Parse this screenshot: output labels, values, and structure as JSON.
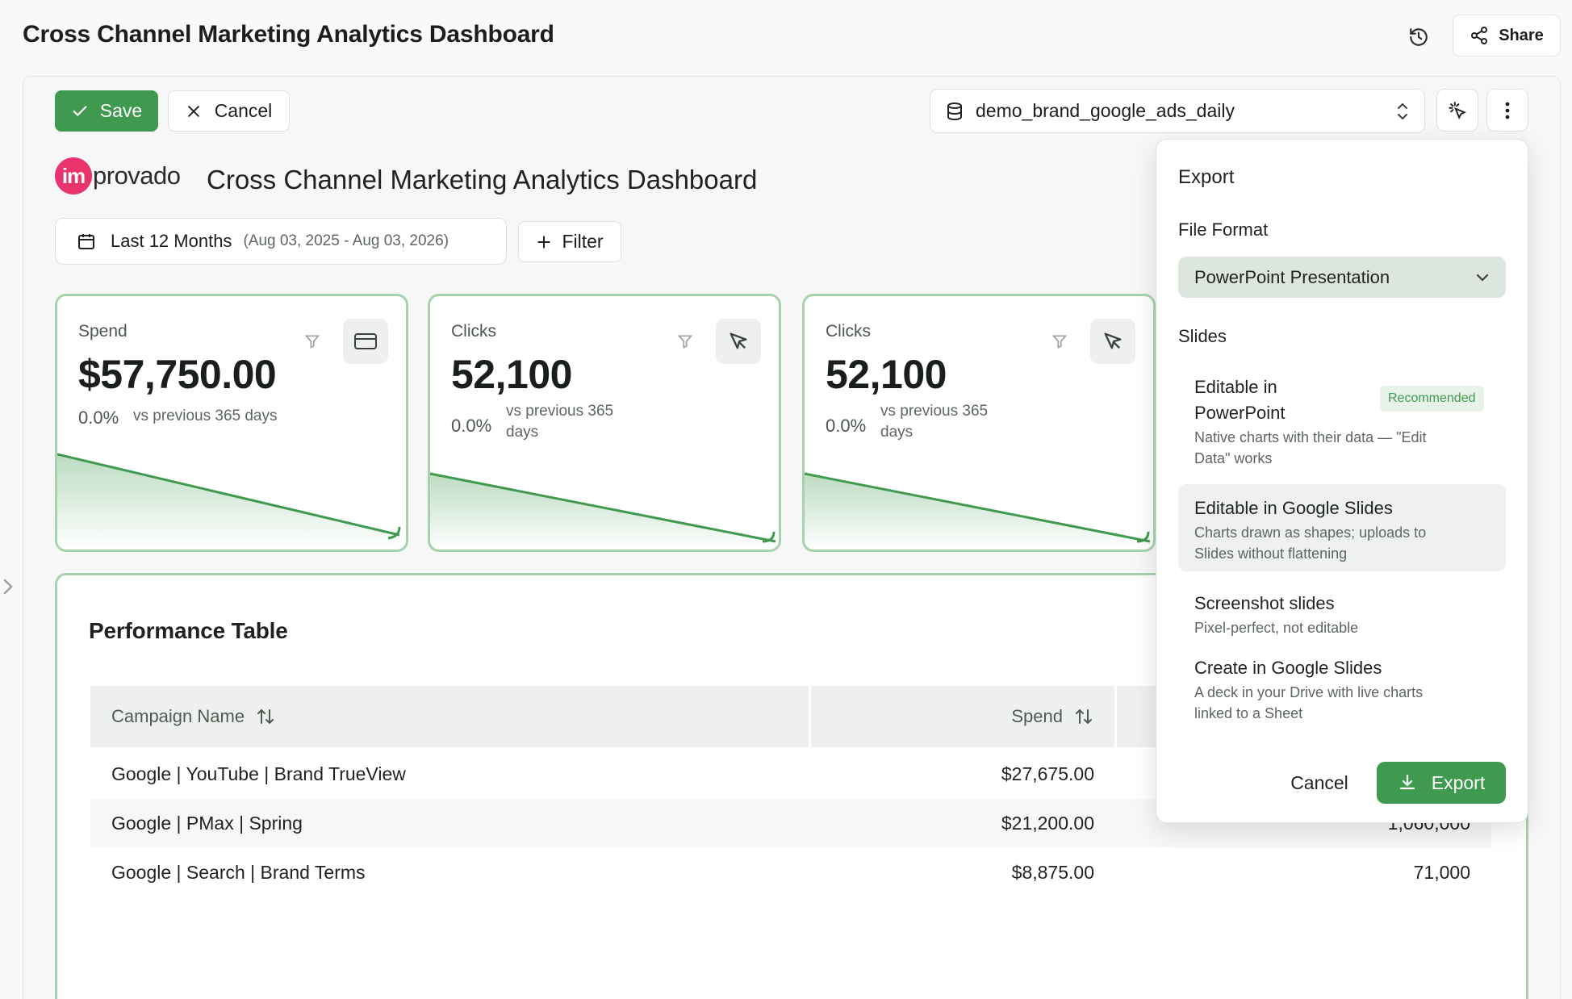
{
  "header": {
    "title": "Cross Channel Marketing Analytics Dashboard",
    "share_label": "Share"
  },
  "toolbar": {
    "save_label": "Save",
    "cancel_label": "Cancel",
    "data_source": "demo_brand_google_ads_daily"
  },
  "dashboard": {
    "logo_mark": "im",
    "logo_rest": "provado",
    "title": "Cross Channel Marketing Analytics Dashboard",
    "date_range_label": "Last 12 Months",
    "date_range_dates": "(Aug 03, 2025 - Aug 03, 2026)",
    "filter_label": "Filter"
  },
  "kpis": [
    {
      "label": "Spend",
      "value": "$57,750.00",
      "delta": "0.0%",
      "comparison": "vs previous 365 days",
      "icon": "credit-card-icon"
    },
    {
      "label": "Clicks",
      "value": "52,100",
      "delta": "0.0%",
      "comparison_line1": "vs previous 365",
      "comparison_line2": "days",
      "icon": "cursor-icon"
    },
    {
      "label": "Clicks",
      "value": "52,100",
      "delta": "0.0%",
      "comparison_line1": "vs previous 365",
      "comparison_line2": "days",
      "icon": "cursor-icon"
    }
  ],
  "table": {
    "title": "Performance Table",
    "columns": [
      "Campaign Name",
      "Spend"
    ],
    "rows": [
      {
        "campaign": "Google | YouTube | Brand TrueView",
        "spend": "$27,675.00",
        "third": ""
      },
      {
        "campaign": "Google | PMax | Spring",
        "spend": "$21,200.00",
        "third": "1,060,000"
      },
      {
        "campaign": "Google | Search | Brand Terms",
        "spend": "$8,875.00",
        "third": "71,000"
      }
    ]
  },
  "export_popover": {
    "title": "Export",
    "file_format_label": "File Format",
    "file_format_value": "PowerPoint Presentation",
    "slides_label": "Slides",
    "options": [
      {
        "title_line1": "Editable in",
        "title_line2": "PowerPoint",
        "desc_line1": "Native charts with their data — \"Edit",
        "desc_line2": "Data\" works",
        "badge": "Recommended"
      },
      {
        "title": "Editable in Google Slides",
        "desc_line1": "Charts drawn as shapes; uploads to",
        "desc_line2": "Slides without flattening"
      },
      {
        "title": "Screenshot slides",
        "desc_line1": "Pixel-perfect, not editable"
      },
      {
        "title": "Create in Google Slides",
        "desc_line1": "A deck in your Drive with live charts",
        "desc_line2": "linked to a Sheet"
      }
    ],
    "selected_option_index": 1,
    "cancel_label": "Cancel",
    "export_label": "Export"
  },
  "colors": {
    "accent_green": "#3f9a4f",
    "card_border": "#a6d3ad",
    "logo_pink": "#e8336c"
  }
}
